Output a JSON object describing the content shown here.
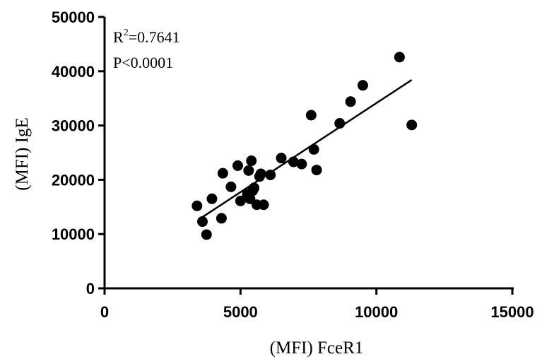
{
  "chart_data": {
    "type": "scatter",
    "title": "",
    "xlabel": "(MFI) FceR1",
    "ylabel": "(MFI) IgE",
    "xlim": [
      0,
      15000
    ],
    "ylim": [
      0,
      50000
    ],
    "x_ticks": [
      "0",
      "5000",
      "10000",
      "15000"
    ],
    "y_ticks": [
      "0",
      "10000",
      "20000",
      "30000",
      "40000",
      "50000"
    ],
    "grid": false,
    "legend": "none",
    "annotations": {
      "r2_prefix": "R",
      "r2_sup": "2",
      "r2_value": "=0.7641",
      "p_value": "P<0.0001"
    },
    "points": [
      [
        3400,
        15200
      ],
      [
        3600,
        12300
      ],
      [
        3750,
        9900
      ],
      [
        3950,
        16500
      ],
      [
        4300,
        12900
      ],
      [
        4350,
        21200
      ],
      [
        4650,
        18700
      ],
      [
        4900,
        22600
      ],
      [
        5000,
        16100
      ],
      [
        5250,
        17300
      ],
      [
        5300,
        21700
      ],
      [
        5350,
        16500
      ],
      [
        5400,
        23500
      ],
      [
        5450,
        18000
      ],
      [
        5500,
        18500
      ],
      [
        5600,
        15400
      ],
      [
        5700,
        20600
      ],
      [
        5750,
        21100
      ],
      [
        5850,
        15400
      ],
      [
        6100,
        20900
      ],
      [
        6500,
        24000
      ],
      [
        6950,
        23300
      ],
      [
        7250,
        22900
      ],
      [
        7600,
        31900
      ],
      [
        7700,
        25600
      ],
      [
        7800,
        21800
      ],
      [
        8650,
        30400
      ],
      [
        9050,
        34400
      ],
      [
        9500,
        37400
      ],
      [
        10850,
        42600
      ],
      [
        11300,
        30100
      ]
    ],
    "regression": {
      "x": [
        3500,
        11300
      ],
      "y": [
        12800,
        38400
      ]
    },
    "marker_color": "#000000"
  }
}
